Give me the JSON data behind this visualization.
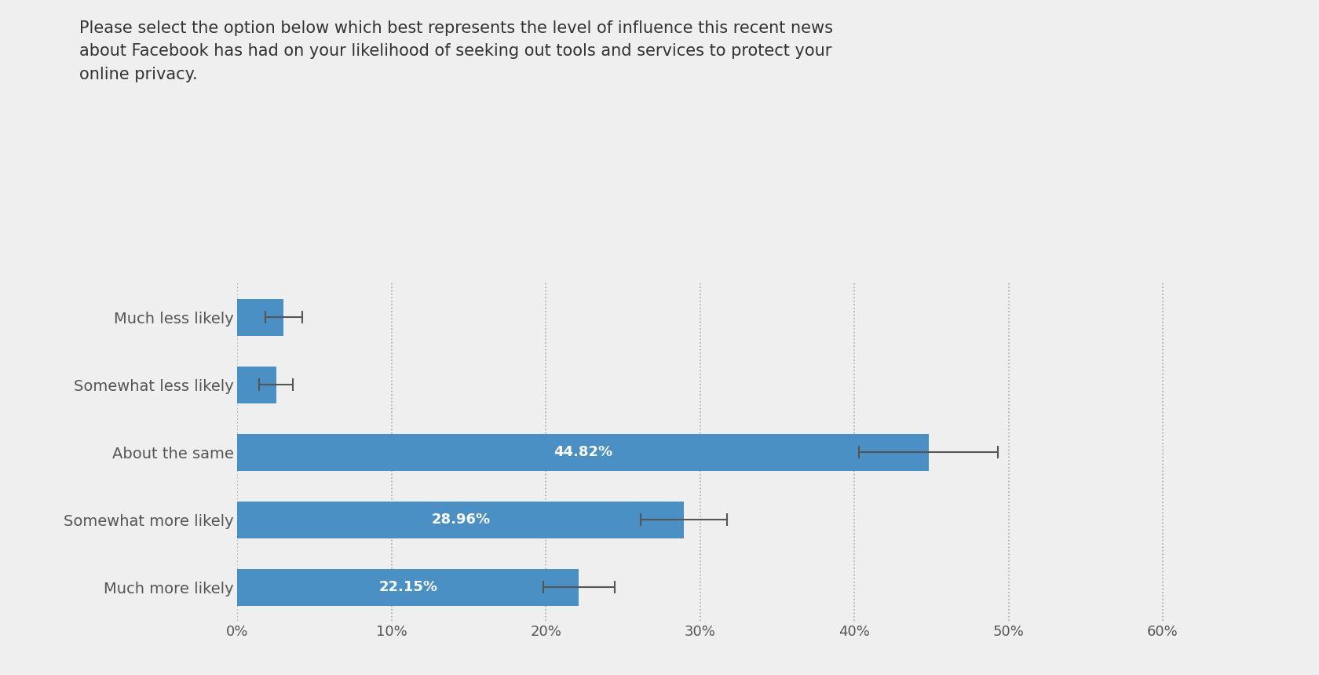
{
  "title": "Please select the option below which best represents the level of influence this recent news\nabout Facebook has had on your likelihood of seeking out tools and services to protect your\nonline privacy.",
  "categories": [
    "Much more likely",
    "Somewhat more likely",
    "About the same",
    "Somewhat less likely",
    "Much less likely"
  ],
  "values": [
    22.15,
    28.96,
    44.82,
    2.5,
    3.0
  ],
  "errors": [
    2.3,
    2.8,
    4.5,
    1.1,
    1.2
  ],
  "bar_color": "#4A90C4",
  "label_color": "#ffffff",
  "small_bar_threshold": 10,
  "xlim": [
    0,
    65
  ],
  "xticks": [
    0,
    10,
    20,
    30,
    40,
    50,
    60
  ],
  "xtick_labels": [
    "0%",
    "10%",
    "20%",
    "30%",
    "40%",
    "50%",
    "60%"
  ],
  "background_color": "#efefef",
  "title_fontsize": 15,
  "tick_fontsize": 13,
  "label_fontsize": 13,
  "category_fontsize": 14,
  "title_color": "#333333",
  "tick_color": "#555555",
  "category_color": "#555555"
}
